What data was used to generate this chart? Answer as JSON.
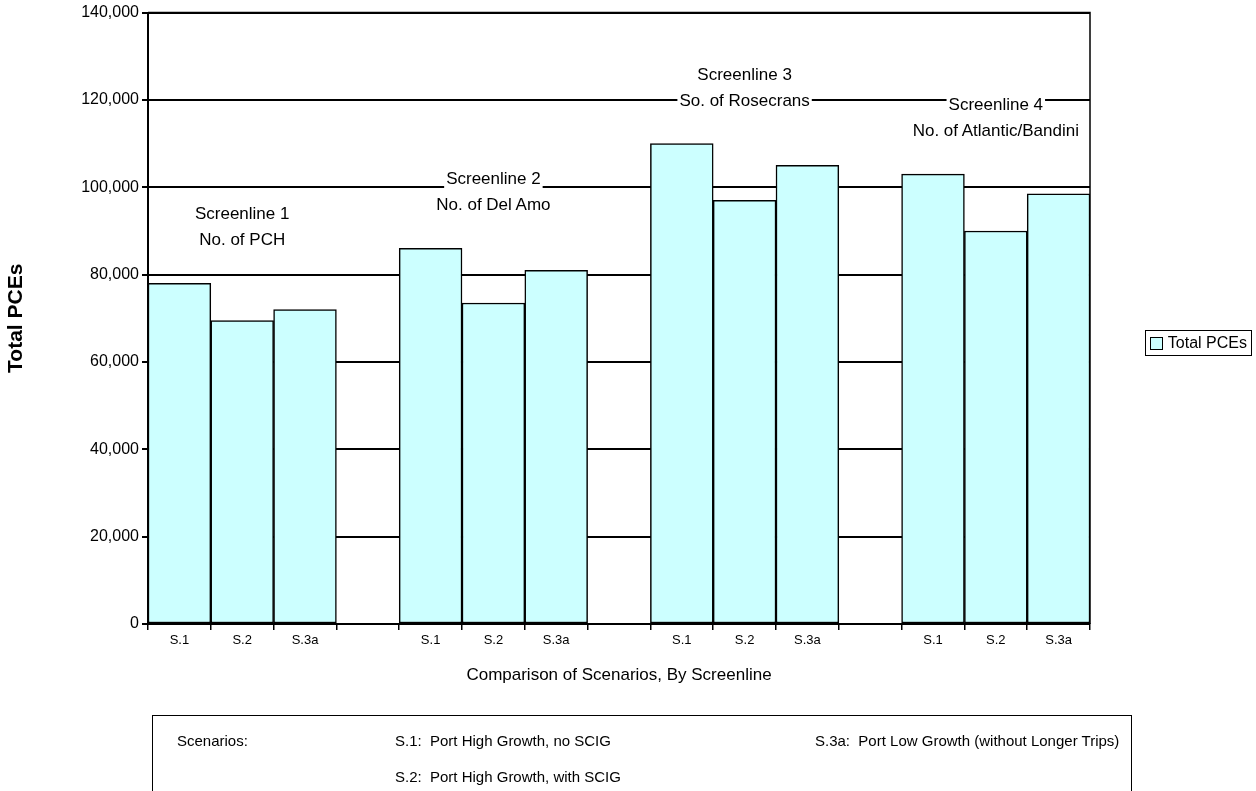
{
  "chart_data": {
    "type": "bar",
    "categories": [
      "S.1",
      "S.2",
      "S.3a",
      null,
      "S.1",
      "S.2",
      "S.3a",
      null,
      "S.1",
      "S.2",
      "S.3a",
      null,
      "S.1",
      "S.2",
      "S.3a"
    ],
    "series": [
      {
        "name": "Total PCEs",
        "color": "#ccffff",
        "values": [
          78000,
          69500,
          72000,
          null,
          86000,
          73500,
          81000,
          null,
          110000,
          97000,
          105000,
          null,
          103000,
          90000,
          98500
        ]
      }
    ],
    "xlabel": "Comparison of Scenarios, By Screenline",
    "ylabel": "Total PCEs",
    "ylim": [
      0,
      140000
    ],
    "yticks": [
      0,
      {
        "value": 20000,
        "label": "20,000"
      },
      {
        "value": 40000,
        "label": "40,000"
      },
      {
        "value": 60000,
        "label": "60,000"
      },
      {
        "value": 80000,
        "label": "80,000"
      },
      {
        "value": 100000,
        "label": "100,000"
      },
      {
        "value": 120000,
        "label": "120,000"
      },
      {
        "value": 140000,
        "label": "140,000"
      }
    ],
    "grid": "y",
    "legend": "right",
    "annotations": [
      "Screenline 1\nNo. of PCH",
      "Screenline 2\nNo. of Del Amo",
      "Screenline 3\nSo. of Rosecrans",
      "Screenline 4\nNo. of Atlantic/Bandini",
      "Scenarios:",
      "S.1:  Port High Growth, no SCIG",
      "S.3a:  Port Low Growth (without Longer Trips)",
      "S.2:  Port High Growth, with SCIG"
    ]
  }
}
